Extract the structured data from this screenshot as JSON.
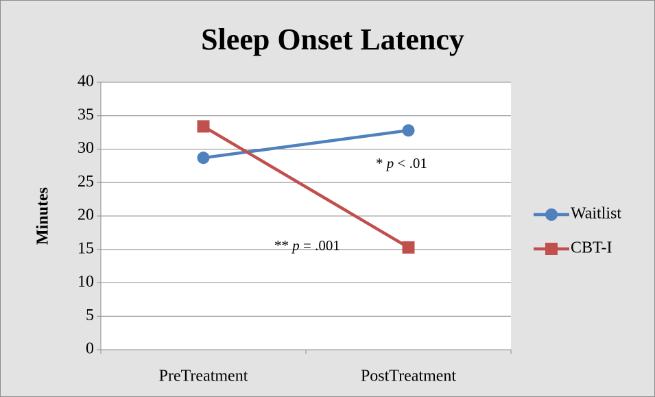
{
  "chart_data": {
    "type": "line",
    "title": "Sleep Onset Latency",
    "y_label": "Minutes",
    "categories": [
      "PreTreatment",
      "PostTreatment"
    ],
    "series": [
      {
        "name": "Waitlist",
        "color": "#4f81bd",
        "marker": "circle",
        "values": [
          28.7,
          32.8
        ]
      },
      {
        "name": "CBT-I",
        "color": "#c0504d",
        "marker": "square",
        "values": [
          33.4,
          15.3
        ]
      }
    ],
    "ylim": [
      0,
      40
    ],
    "yticks": [
      0,
      5,
      10,
      15,
      20,
      25,
      30,
      35,
      40
    ],
    "grid": true,
    "legend": "right",
    "annotations": [
      {
        "parts": [
          "* ",
          "p",
          " < .01"
        ]
      },
      {
        "parts": [
          "** ",
          "p",
          " = .001"
        ]
      }
    ]
  }
}
